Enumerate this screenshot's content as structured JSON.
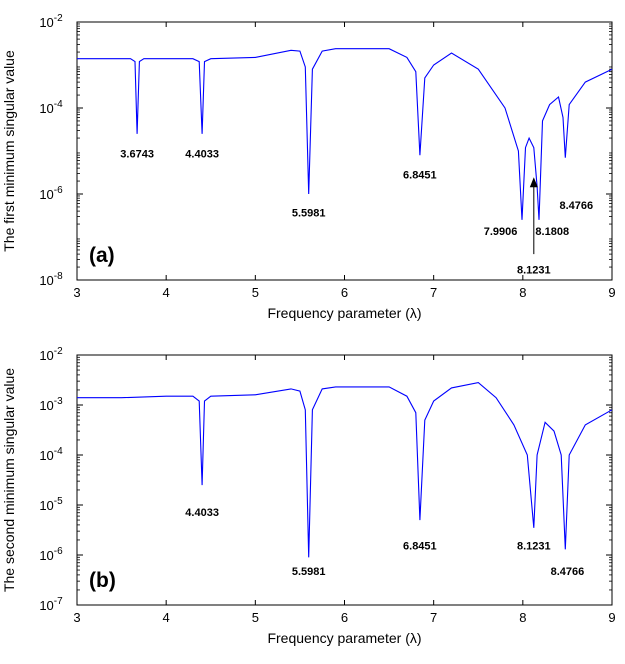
{
  "chart_data": [
    {
      "type": "line",
      "panel_label": "(a)",
      "xlabel": "Frequency parameter (λ)",
      "ylabel": "The first minimum singular value",
      "xlim": [
        3,
        9
      ],
      "ylim": [
        1e-08,
        0.01
      ],
      "yscale": "log",
      "x_ticks": [
        "3",
        "4",
        "5",
        "6",
        "7",
        "8",
        "9"
      ],
      "y_ticks": [
        {
          "base": "10",
          "exp": "-8"
        },
        {
          "base": "10",
          "exp": "-6"
        },
        {
          "base": "10",
          "exp": "-4"
        },
        {
          "base": "10",
          "exp": "-2"
        }
      ],
      "line_color": "#0000ff",
      "grid": false,
      "series": [
        {
          "x": [
            3.0,
            3.3,
            3.6,
            3.65,
            3.6743,
            3.7,
            3.75,
            4.0,
            4.3,
            4.37,
            4.4033,
            4.43,
            4.5,
            5.0,
            5.4,
            5.5,
            5.56,
            5.5981,
            5.64,
            5.75,
            5.9,
            6.0,
            6.5,
            6.7,
            6.8,
            6.8451,
            6.9,
            7.0,
            7.2,
            7.5,
            7.8,
            7.95,
            7.9906,
            8.03,
            8.07,
            8.1231,
            8.16,
            8.1808,
            8.22,
            8.3,
            8.4,
            8.45,
            8.4766,
            8.52,
            8.7,
            9.0
          ],
          "y": [
            0.0014,
            0.0014,
            0.0014,
            0.0012,
            2.5e-05,
            0.0012,
            0.0014,
            0.0014,
            0.0014,
            0.0012,
            2.5e-05,
            0.0012,
            0.0014,
            0.0015,
            0.0022,
            0.0021,
            0.0009,
            1e-06,
            0.0008,
            0.0021,
            0.0024,
            0.0024,
            0.0024,
            0.0015,
            0.0007,
            8e-06,
            0.0005,
            0.001,
            0.0019,
            0.0008,
            0.0001,
            1e-05,
            2.5e-07,
            1.2e-05,
            2e-05,
            1.2e-05,
            1.5e-06,
            2.5e-07,
            5e-05,
            0.00012,
            0.00018,
            6e-05,
            7e-06,
            0.00012,
            0.0004,
            0.0008
          ]
        }
      ],
      "annotations": [
        {
          "text": "3.6743",
          "x": 3.6743,
          "y": 7e-06
        },
        {
          "text": "4.4033",
          "x": 4.4033,
          "y": 7e-06
        },
        {
          "text": "5.5981",
          "x": 5.5981,
          "y": 3e-07
        },
        {
          "text": "6.8451",
          "x": 6.8451,
          "y": 2.3e-06
        },
        {
          "text": "7.9906",
          "x": 7.75,
          "y": 1.1e-07
        },
        {
          "text": "8.1808",
          "x": 8.33,
          "y": 1.1e-07
        },
        {
          "text": "8.1231",
          "x": 8.1231,
          "y": 1.4e-08
        },
        {
          "text": "8.4766",
          "x": 8.6,
          "y": 4.5e-07
        }
      ],
      "arrow": {
        "x": 8.1231,
        "y_from": 4e-08,
        "y_to": 2.2e-06
      }
    },
    {
      "type": "line",
      "panel_label": "(b)",
      "xlabel": "Frequency parameter (λ)",
      "ylabel": "The second minimum singular value",
      "xlim": [
        3,
        9
      ],
      "ylim": [
        1e-07,
        0.01
      ],
      "yscale": "log",
      "x_ticks": [
        "3",
        "4",
        "5",
        "6",
        "7",
        "8",
        "9"
      ],
      "y_ticks": [
        {
          "base": "10",
          "exp": "-7"
        },
        {
          "base": "10",
          "exp": "-6"
        },
        {
          "base": "10",
          "exp": "-5"
        },
        {
          "base": "10",
          "exp": "-4"
        },
        {
          "base": "10",
          "exp": "-3"
        },
        {
          "base": "10",
          "exp": "-2"
        }
      ],
      "line_color": "#0000ff",
      "grid": false,
      "series": [
        {
          "x": [
            3.0,
            3.5,
            4.0,
            4.3,
            4.37,
            4.4033,
            4.43,
            4.5,
            5.0,
            5.4,
            5.5,
            5.56,
            5.5981,
            5.64,
            5.75,
            5.9,
            6.0,
            6.5,
            6.7,
            6.8,
            6.8451,
            6.9,
            7.0,
            7.2,
            7.5,
            7.7,
            7.9,
            8.05,
            8.1231,
            8.16,
            8.25,
            8.35,
            8.43,
            8.4766,
            8.52,
            8.7,
            9.0
          ],
          "y": [
            0.0014,
            0.0014,
            0.0015,
            0.0015,
            0.0012,
            2.5e-05,
            0.0012,
            0.0015,
            0.0016,
            0.0021,
            0.0019,
            0.0008,
            9e-07,
            0.0008,
            0.0021,
            0.0023,
            0.0023,
            0.0023,
            0.0015,
            0.0007,
            5e-06,
            0.0005,
            0.0012,
            0.0022,
            0.0028,
            0.0014,
            0.0004,
            0.0001,
            3.5e-06,
            0.0001,
            0.00045,
            0.0003,
            0.0001,
            1.3e-06,
            0.0001,
            0.0004,
            0.0008
          ]
        }
      ],
      "annotations": [
        {
          "text": "4.4033",
          "x": 4.4033,
          "y": 6e-06
        },
        {
          "text": "5.5981",
          "x": 5.5981,
          "y": 4e-07
        },
        {
          "text": "6.8451",
          "x": 6.8451,
          "y": 1.3e-06
        },
        {
          "text": "8.1231",
          "x": 8.1231,
          "y": 1.3e-06
        },
        {
          "text": "8.4766",
          "x": 8.5,
          "y": 4e-07
        }
      ]
    }
  ]
}
